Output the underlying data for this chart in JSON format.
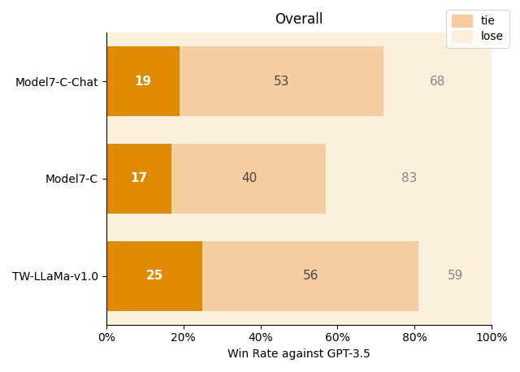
{
  "title": "Overall",
  "xlabel": "Win Rate against GPT-3.5",
  "models": [
    "Model7-C-Chat",
    "Model7-C",
    "TW-LLaMa-v1.0"
  ],
  "win": [
    19,
    17,
    25
  ],
  "tie": [
    53,
    40,
    56
  ],
  "lose": [
    68,
    83,
    59
  ],
  "win_color": "#E08A00",
  "tie_color": "#F5CDA0",
  "lose_color": "#FAF0DC",
  "plot_bg_color": "#FAF0DC",
  "bar_height": 0.72,
  "title_fontsize": 12,
  "label_fontsize": 10,
  "tick_fontsize": 10,
  "annotation_fontsize": 11,
  "background_color": "#ffffff"
}
